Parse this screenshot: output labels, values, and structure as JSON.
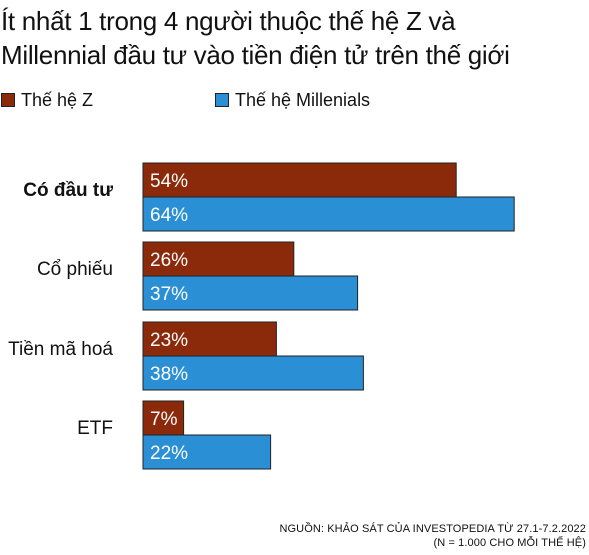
{
  "header": {
    "title_line1": "Ít nhất 1 trong 4 người thuộc thế hệ Z và",
    "title_line2": "Millennial đầu tư vào tiền điện tử trên thế giới"
  },
  "legend": {
    "items": [
      {
        "label": "Thế hệ Z",
        "color": "#8b2a0a"
      },
      {
        "label": "Thế hệ Millenials",
        "color": "#2a8fd4"
      }
    ]
  },
  "chart_data": {
    "type": "bar",
    "orientation": "horizontal",
    "categories": [
      "Có đầu tư",
      "Cổ phiếu",
      "Tiền mã hoá",
      "ETF"
    ],
    "bold_categories": [
      "Có đầu tư"
    ],
    "series": [
      {
        "name": "Thế hệ Z",
        "color": "#8b2a0a",
        "values": [
          54,
          26,
          23,
          7
        ],
        "labels": [
          "54%",
          "26%",
          "23%",
          "7%"
        ]
      },
      {
        "name": "Thế hệ Millenials",
        "color": "#2a8fd4",
        "values": [
          64,
          37,
          38,
          22
        ],
        "labels": [
          "64%",
          "37%",
          "38%",
          "22%"
        ]
      }
    ],
    "value_unit": "%",
    "xlim": [
      0,
      100
    ],
    "grid": false,
    "legend_position": "top-left"
  },
  "footer": {
    "source_line1": "NGUỒN: KHẢO SÁT CỦA INVESTOPEDIA TỪ 27.1-7.2.2022",
    "source_line2": "(N = 1.000 CHO MỖI THẾ HỆ)"
  }
}
